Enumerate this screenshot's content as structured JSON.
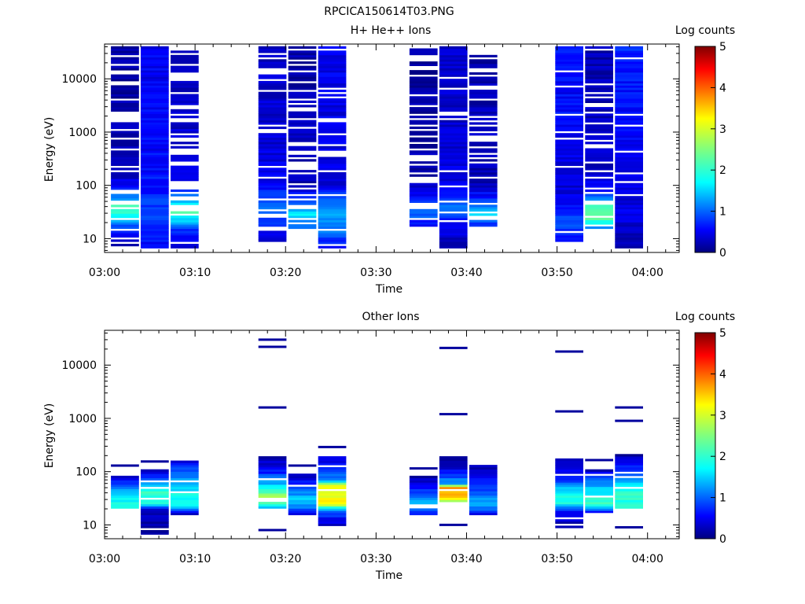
{
  "figure_title": "RPCICA150614T03.PNG",
  "colorbar": {
    "label": "Log counts",
    "ticks": [
      "0",
      "1",
      "2",
      "3",
      "4",
      "5"
    ]
  },
  "chart_data": [
    {
      "type": "heatmap",
      "title": "H+ He++ Ions",
      "xlabel": "Time",
      "ylabel": "Energy (eV)",
      "y_scale": "log",
      "x_ticks": [
        "03:00",
        "03:10",
        "03:20",
        "03:30",
        "03:40",
        "03:50",
        "04:00"
      ],
      "y_ticks": [
        "10",
        "100",
        "1000",
        "10000"
      ],
      "xlim_minutes": [
        0,
        63.5
      ],
      "ylim": [
        5.5,
        45000
      ],
      "clim": [
        0,
        5
      ],
      "columns": [
        {
          "t0": 0.7,
          "t1": 3.8,
          "emin": 6.5,
          "emax": 42000,
          "gaps": 0.35,
          "profile": [
            [
              6,
              0.15
            ],
            [
              12,
              0.5
            ],
            [
              20,
              1.3
            ],
            [
              40,
              2.4
            ],
            [
              60,
              1.2
            ],
            [
              150,
              0.3
            ],
            [
              45000,
              0.15
            ]
          ]
        },
        {
          "t0": 4.0,
          "t1": 7.1,
          "emin": 6.5,
          "emax": 42000,
          "gaps": 0.0,
          "profile": [
            [
              6,
              0.6
            ],
            [
              15,
              0.7
            ],
            [
              30,
              1.0
            ],
            [
              100,
              0.7
            ],
            [
              1000,
              0.6
            ],
            [
              45000,
              0.55
            ]
          ]
        },
        {
          "t0": 7.3,
          "t1": 10.4,
          "emin": 6.5,
          "emax": 42000,
          "gaps": 0.3,
          "profile": [
            [
              6,
              0.4
            ],
            [
              15,
              0.9
            ],
            [
              30,
              2.2
            ],
            [
              50,
              1.6
            ],
            [
              100,
              0.5
            ],
            [
              45000,
              0.2
            ]
          ]
        },
        {
          "t0": 17.0,
          "t1": 20.1,
          "emin": 9,
          "emax": 42000,
          "gaps": 0.25,
          "profile": [
            [
              9,
              0.3
            ],
            [
              20,
              0.9
            ],
            [
              40,
              1.3
            ],
            [
              100,
              0.6
            ],
            [
              1000,
              0.4
            ],
            [
              45000,
              0.35
            ]
          ]
        },
        {
          "t0": 20.3,
          "t1": 23.4,
          "emin": 16,
          "emax": 42000,
          "gaps": 0.35,
          "profile": [
            [
              16,
              1.0
            ],
            [
              30,
              1.8
            ],
            [
              50,
              1.0
            ],
            [
              100,
              0.3
            ],
            [
              45000,
              0.2
            ]
          ]
        },
        {
          "t0": 23.6,
          "t1": 26.7,
          "emin": 6.5,
          "emax": 42000,
          "gaps": 0.1,
          "profile": [
            [
              6,
              0.6
            ],
            [
              20,
              1.4
            ],
            [
              40,
              1.3
            ],
            [
              100,
              0.5
            ],
            [
              1000,
              0.5
            ],
            [
              45000,
              0.55
            ]
          ]
        },
        {
          "t0": 33.7,
          "t1": 36.8,
          "emin": 16,
          "emax": 42000,
          "gaps": 0.4,
          "profile": [
            [
              16,
              0.5
            ],
            [
              30,
              1.2
            ],
            [
              60,
              0.6
            ],
            [
              150,
              0.2
            ],
            [
              45000,
              0.15
            ]
          ]
        },
        {
          "t0": 37.0,
          "t1": 40.1,
          "emin": 6.5,
          "emax": 42000,
          "gaps": 0.15,
          "profile": [
            [
              6,
              0.2
            ],
            [
              20,
              0.6
            ],
            [
              40,
              1.2
            ],
            [
              100,
              0.5
            ],
            [
              1000,
              0.4
            ],
            [
              45000,
              0.35
            ]
          ]
        },
        {
          "t0": 40.3,
          "t1": 43.4,
          "emin": 16,
          "emax": 42000,
          "gaps": 0.3,
          "profile": [
            [
              16,
              0.6
            ],
            [
              30,
              1.8
            ],
            [
              50,
              0.9
            ],
            [
              100,
              0.3
            ],
            [
              45000,
              0.2
            ]
          ]
        },
        {
          "t0": 49.8,
          "t1": 52.9,
          "emin": 9,
          "emax": 42000,
          "gaps": 0.1,
          "profile": [
            [
              9,
              0.6
            ],
            [
              20,
              1.1
            ],
            [
              40,
              0.7
            ],
            [
              100,
              0.4
            ],
            [
              1000,
              0.6
            ],
            [
              45000,
              0.7
            ]
          ]
        },
        {
          "t0": 53.1,
          "t1": 56.2,
          "emin": 16,
          "emax": 42000,
          "gaps": 0.3,
          "profile": [
            [
              16,
              1.3
            ],
            [
              25,
              2.4
            ],
            [
              45,
              2.1
            ],
            [
              70,
              0.7
            ],
            [
              200,
              0.35
            ],
            [
              45000,
              0.25
            ]
          ]
        },
        {
          "t0": 56.4,
          "t1": 59.5,
          "emin": 6.5,
          "emax": 42000,
          "gaps": 0.05,
          "profile": [
            [
              6,
              0.2
            ],
            [
              30,
              0.5
            ],
            [
              100,
              0.5
            ],
            [
              1000,
              0.6
            ],
            [
              45000,
              0.8
            ]
          ]
        }
      ]
    },
    {
      "type": "heatmap",
      "title": "Other Ions",
      "xlabel": "Time",
      "ylabel": "Energy (eV)",
      "y_scale": "log",
      "x_ticks": [
        "03:00",
        "03:10",
        "03:20",
        "03:30",
        "03:40",
        "03:50",
        "04:00"
      ],
      "y_ticks": [
        "10",
        "100",
        "1000",
        "10000"
      ],
      "xlim_minutes": [
        0,
        63.5
      ],
      "ylim": [
        5.5,
        45000
      ],
      "clim": [
        0,
        5
      ],
      "columns": [
        {
          "t0": 0.7,
          "t1": 3.8,
          "emin": 20,
          "emax": 85,
          "gaps": 0.05,
          "extra": [
            130
          ],
          "profile": [
            [
              20,
              2.1
            ],
            [
              40,
              1.7
            ],
            [
              60,
              0.9
            ],
            [
              85,
              0.2
            ]
          ]
        },
        {
          "t0": 4.0,
          "t1": 7.1,
          "emin": 6.5,
          "emax": 110,
          "gaps": 0.1,
          "extra": [
            155
          ],
          "profile": [
            [
              6,
              0.1
            ],
            [
              20,
              0.4
            ],
            [
              25,
              2.2
            ],
            [
              50,
              2.0
            ],
            [
              100,
              0.3
            ]
          ]
        },
        {
          "t0": 7.3,
          "t1": 10.4,
          "emin": 16,
          "emax": 165,
          "gaps": 0.05,
          "profile": [
            [
              16,
              0.3
            ],
            [
              25,
              2.1
            ],
            [
              60,
              1.6
            ],
            [
              110,
              1.0
            ],
            [
              165,
              0.4
            ]
          ]
        },
        {
          "t0": 17.0,
          "t1": 20.1,
          "emin": 20,
          "emax": 190,
          "gaps": 0.15,
          "extra": [
            8,
            1600,
            22000,
            30000
          ],
          "profile": [
            [
              20,
              1.6
            ],
            [
              35,
              2.7
            ],
            [
              60,
              1.5
            ],
            [
              110,
              0.6
            ],
            [
              190,
              0.2
            ]
          ]
        },
        {
          "t0": 20.3,
          "t1": 23.4,
          "emin": 15,
          "emax": 90,
          "gaps": 0.1,
          "extra": [
            130
          ],
          "profile": [
            [
              15,
              0.2
            ],
            [
              22,
              1.3
            ],
            [
              30,
              1.6
            ],
            [
              50,
              1.0
            ],
            [
              90,
              0.3
            ]
          ]
        },
        {
          "t0": 23.6,
          "t1": 26.7,
          "emin": 9.5,
          "emax": 200,
          "gaps": 0.05,
          "extra": [
            290
          ],
          "profile": [
            [
              9.5,
              0.3
            ],
            [
              18,
              1.0
            ],
            [
              25,
              3.1
            ],
            [
              55,
              3.1
            ],
            [
              70,
              1.3
            ],
            [
              200,
              0.3
            ]
          ]
        },
        {
          "t0": 33.7,
          "t1": 36.8,
          "emin": 15,
          "emax": 85,
          "gaps": 0.1,
          "extra": [
            115
          ],
          "profile": [
            [
              15,
              0.6
            ],
            [
              25,
              1.7
            ],
            [
              40,
              0.9
            ],
            [
              85,
              0.2
            ]
          ]
        },
        {
          "t0": 37.0,
          "t1": 40.1,
          "emin": 25,
          "emax": 190,
          "gaps": 0.05,
          "extra": [
            10,
            1200,
            21000
          ],
          "profile": [
            [
              25,
              2.3
            ],
            [
              35,
              3.5
            ],
            [
              50,
              3.6
            ],
            [
              60,
              1.5
            ],
            [
              110,
              0.5
            ],
            [
              190,
              0.2
            ]
          ]
        },
        {
          "t0": 40.3,
          "t1": 43.4,
          "emin": 15,
          "emax": 130,
          "gaps": 0.15,
          "profile": [
            [
              15,
              0.4
            ],
            [
              25,
              1.6
            ],
            [
              40,
              1.0
            ],
            [
              130,
              0.2
            ]
          ]
        },
        {
          "t0": 49.8,
          "t1": 52.9,
          "emin": 9,
          "emax": 185,
          "gaps": 0.1,
          "extra": [
            1350,
            18000
          ],
          "profile": [
            [
              9,
              0.2
            ],
            [
              18,
              0.5
            ],
            [
              25,
              2.0
            ],
            [
              45,
              1.8
            ],
            [
              70,
              0.8
            ],
            [
              185,
              0.2
            ]
          ]
        },
        {
          "t0": 53.1,
          "t1": 56.2,
          "emin": 17,
          "emax": 110,
          "gaps": 0.1,
          "extra": [
            165
          ],
          "profile": [
            [
              17,
              0.6
            ],
            [
              25,
              2.2
            ],
            [
              50,
              1.6
            ],
            [
              110,
              0.3
            ]
          ]
        },
        {
          "t0": 56.4,
          "t1": 59.5,
          "emin": 20,
          "emax": 210,
          "gaps": 0.1,
          "extra": [
            9,
            900,
            1600
          ],
          "profile": [
            [
              20,
              2.0
            ],
            [
              50,
              2.1
            ],
            [
              80,
              1.1
            ],
            [
              210,
              0.2
            ]
          ]
        }
      ]
    }
  ]
}
